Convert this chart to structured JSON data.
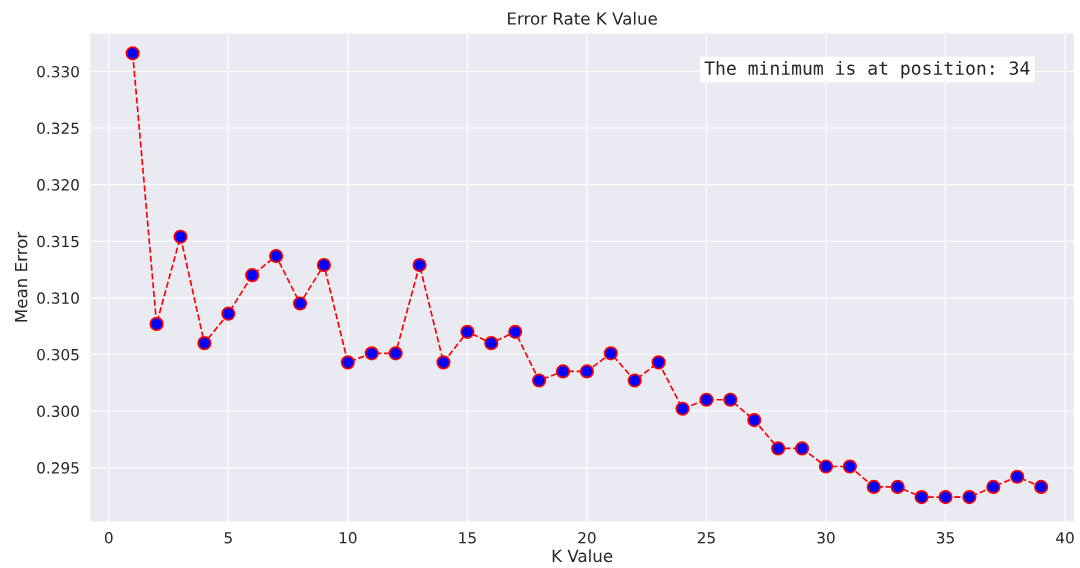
{
  "chart_data": {
    "type": "line",
    "title": "Error Rate K Value",
    "xlabel": "K Value",
    "ylabel": "Mean Error",
    "x": [
      1,
      2,
      3,
      4,
      5,
      6,
      7,
      8,
      9,
      10,
      11,
      12,
      13,
      14,
      15,
      16,
      17,
      18,
      19,
      20,
      21,
      22,
      23,
      24,
      25,
      26,
      27,
      28,
      29,
      30,
      31,
      32,
      33,
      34,
      35,
      36,
      37,
      38,
      39
    ],
    "series": [
      {
        "color": "#ff0000",
        "colors": [
          "#0000ff",
          "#0000ff",
          "#0000ff",
          "#0000ff",
          "#0000ff",
          "#0000ff",
          "#0000ff",
          "#0000ff",
          "#0000ff",
          "#0000ff",
          "#0000ff",
          "#0000ff",
          "#0000ff",
          "#0000ff",
          "#0000ff",
          "#0000ff",
          "#0000ff",
          "#0000ff",
          "#0000ff",
          "#0000ff",
          "#0000ff",
          "#0000ff",
          "#0000ff",
          "#0000ff",
          "#0000ff",
          "#0000ff",
          "#0000ff",
          "#0000ff",
          "#0000ff",
          "#0000ff",
          "#0000ff",
          "#0000ff",
          "#0000ff",
          "#0000ff",
          "#0000ff",
          "#0000ff",
          "#0000ff",
          "#0000ff",
          "#0000ff"
        ],
        "values": [
          0.3316,
          0.3077,
          0.3154,
          0.306,
          0.3086,
          0.312,
          0.3137,
          0.3095,
          0.3129,
          0.3043,
          0.3051,
          0.3051,
          0.3129,
          0.3043,
          0.307,
          0.306,
          0.307,
          0.3027,
          0.3035,
          0.3035,
          0.3051,
          0.3027,
          0.3043,
          0.3002,
          0.301,
          0.301,
          0.2992,
          0.2967,
          0.2967,
          0.2951,
          0.2951,
          0.2933,
          0.2933,
          0.2924,
          0.2924,
          0.2924,
          0.2933,
          0.2942,
          0.2933
        ]
      }
    ],
    "xlim": [
      -0.8,
      40.4
    ],
    "xticks": [
      0,
      5,
      10,
      15,
      20,
      25,
      30,
      35,
      40
    ],
    "ylim": [
      0.2902,
      0.3334
    ],
    "yticks": [
      {
        "value": 0.295,
        "label": "0.295"
      },
      {
        "value": 0.3,
        "label": "0.300"
      },
      {
        "value": 0.305,
        "label": "0.305"
      },
      {
        "value": 0.31,
        "label": "0.310"
      },
      {
        "value": 0.315,
        "label": "0.315"
      },
      {
        "value": 0.32,
        "label": "0.320"
      },
      {
        "value": 0.325,
        "label": "0.325"
      },
      {
        "value": 0.33,
        "label": "0.330"
      }
    ],
    "grid": true,
    "marker": "circle",
    "line_style": "dashed",
    "legend": false,
    "annotations": [
      "The minimum is at position: 34"
    ]
  }
}
